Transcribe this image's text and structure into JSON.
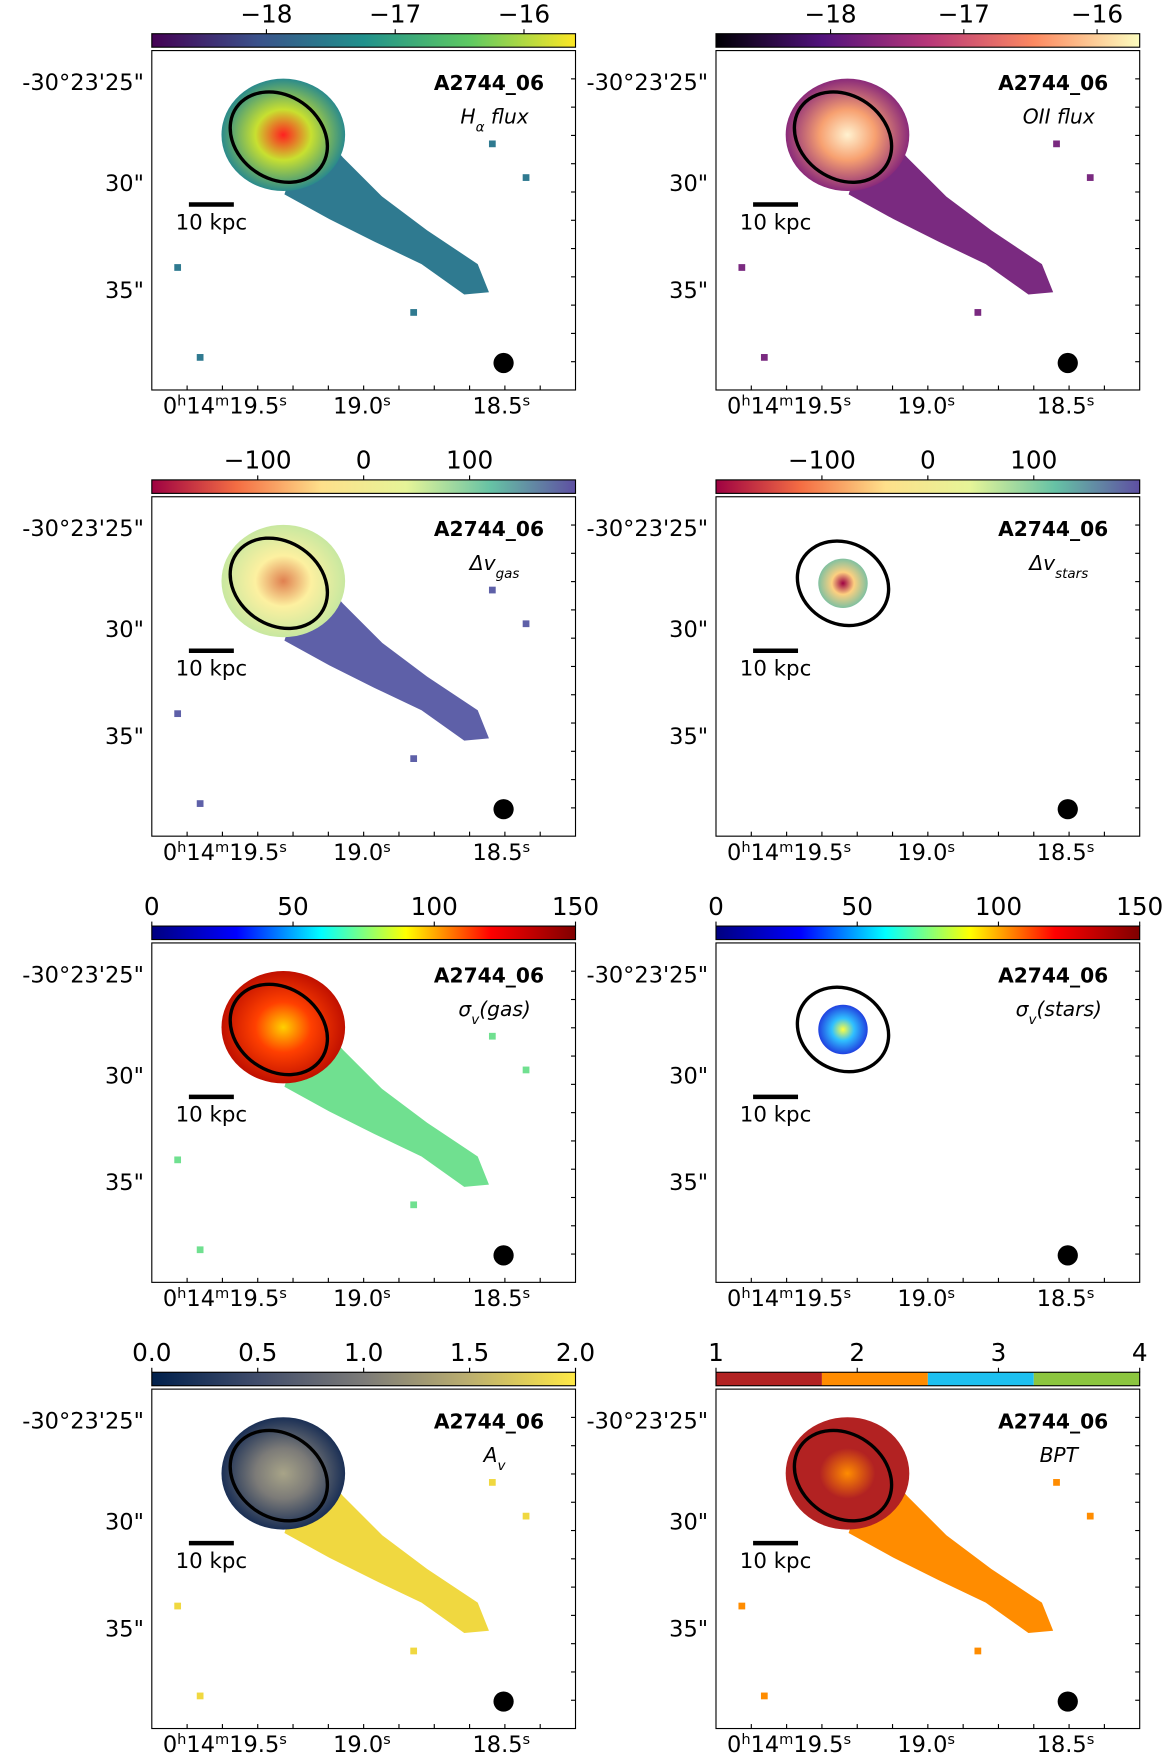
{
  "y_tick_labels": [
    "-30°23'25\"",
    "30\"",
    "35\""
  ],
  "x_tick_labels": [
    [
      "0",
      "h",
      "14",
      "m",
      "19.5",
      "s"
    ],
    [
      "19.0",
      "s"
    ],
    [
      "18.5",
      "s"
    ]
  ],
  "scale_bar": "10 kpc",
  "panels": [
    {
      "name": "A2744_06",
      "label": [
        {
          "text": "H"
        },
        {
          "text": "α",
          "sub": true
        },
        {
          "text": " flux"
        }
      ],
      "colorbar": {
        "lim": [
          -18.89,
          -15.6
        ],
        "ticks": [
          {
            "value": -18,
            "label": "−18"
          },
          {
            "value": -17,
            "label": "−17"
          },
          {
            "value": -16,
            "label": "−16"
          }
        ],
        "colors": [
          "#440154",
          "#3b528b",
          "#21918c",
          "#5ec962",
          "#fde725"
        ]
      }
    },
    {
      "name": "A2744_06",
      "label": [
        {
          "text": "OII flux"
        }
      ],
      "colorbar": {
        "lim": [
          -18.86,
          -15.68
        ],
        "ticks": [
          {
            "value": -18,
            "label": "−18"
          },
          {
            "value": -17,
            "label": "−17"
          },
          {
            "value": -16,
            "label": "−16"
          }
        ],
        "colors": [
          "#000004",
          "#51127c",
          "#b73779",
          "#fc8961",
          "#fcfdbf"
        ]
      }
    },
    {
      "name": "A2744_06",
      "label": [
        {
          "text": "Δv"
        },
        {
          "text": "gas",
          "sub": true
        }
      ],
      "colorbar": {
        "lim": [
          -200,
          200
        ],
        "ticks": [
          {
            "value": -100,
            "label": "−100"
          },
          0,
          100
        ],
        "colors": [
          "#9e0142",
          "#f46d43",
          "#fee08b",
          "#e6f598",
          "#66c2a5",
          "#5e4fa2"
        ]
      }
    },
    {
      "name": "A2744_06",
      "label": [
        {
          "text": "Δv"
        },
        {
          "text": "stars",
          "sub": true
        }
      ],
      "colorbar": {
        "lim": [
          -200,
          200
        ],
        "ticks": [
          {
            "value": -100,
            "label": "−100"
          },
          0,
          100
        ],
        "colors": [
          "#9e0142",
          "#f46d43",
          "#fee08b",
          "#e6f598",
          "#66c2a5",
          "#5e4fa2"
        ]
      }
    },
    {
      "name": "A2744_06",
      "label": [
        {
          "text": "σ"
        },
        {
          "text": "v",
          "sub": true
        },
        {
          "text": "(gas)"
        }
      ],
      "colorbar": {
        "lim": [
          0,
          150
        ],
        "ticks": [
          0,
          50,
          100,
          150
        ],
        "colors": [
          "#00007f",
          "#0000ff",
          "#00ffff",
          "#ffff00",
          "#ff0000",
          "#7f0000"
        ]
      }
    },
    {
      "name": "A2744_06",
      "label": [
        {
          "text": "σ"
        },
        {
          "text": "v",
          "sub": true
        },
        {
          "text": "(stars)"
        }
      ],
      "colorbar": {
        "lim": [
          0,
          150
        ],
        "ticks": [
          0,
          50,
          100,
          150
        ],
        "colors": [
          "#00007f",
          "#0000ff",
          "#00ffff",
          "#ffff00",
          "#ff0000",
          "#7f0000"
        ]
      }
    },
    {
      "name": "A2744_06",
      "label": [
        {
          "text": "A"
        },
        {
          "text": "v",
          "sub": true
        }
      ],
      "colorbar": {
        "lim": [
          0,
          2
        ],
        "ticks": [
          {
            "value": 0,
            "label": "0.0"
          },
          {
            "value": 0.5,
            "label": "0.5"
          },
          {
            "value": 1,
            "label": "1.0"
          },
          {
            "value": 1.5,
            "label": "1.5"
          },
          {
            "value": 2,
            "label": "2.0"
          }
        ],
        "colors": [
          "#00204c",
          "#414d6b",
          "#7c7b78",
          "#bcaf6f",
          "#ffe945"
        ]
      }
    },
    {
      "name": "A2744_06",
      "label": [
        {
          "text": "BPT"
        }
      ],
      "colorbar": {
        "lim": [
          1,
          4
        ],
        "ticks": [
          1,
          2,
          3,
          4
        ],
        "discrete": true,
        "colors": [
          "#b22222",
          "#ff8c00",
          "#1ec0f0",
          "#8cc63f"
        ]
      }
    }
  ]
}
